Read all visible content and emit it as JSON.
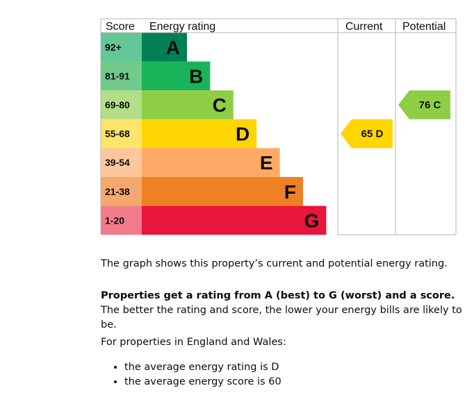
{
  "chart_data": {
    "type": "bar",
    "headers": {
      "score": "Score",
      "rating": "Energy rating",
      "current": "Current",
      "potential": "Potential"
    },
    "bands": [
      {
        "letter": "A",
        "range": "92+",
        "color": "#008054",
        "score_color": "#64c695"
      },
      {
        "letter": "B",
        "range": "81-91",
        "color": "#19b459",
        "score_color": "#6fca8c"
      },
      {
        "letter": "C",
        "range": "69-80",
        "color": "#8dce46",
        "score_color": "#b1de86"
      },
      {
        "letter": "D",
        "range": "55-68",
        "color": "#ffd500",
        "score_color": "#fde569"
      },
      {
        "letter": "E",
        "range": "39-54",
        "color": "#fcaa65",
        "score_color": "#fdc79b"
      },
      {
        "letter": "F",
        "range": "21-38",
        "color": "#ef8023",
        "score_color": "#f4a86c"
      },
      {
        "letter": "G",
        "range": "1-20",
        "color": "#e9153b",
        "score_color": "#f27b8b"
      }
    ],
    "current": {
      "score": 65,
      "band": "D",
      "label": "65  D",
      "color": "#ffd500"
    },
    "potential": {
      "score": 76,
      "band": "C",
      "label": "76  C",
      "color": "#8dce46"
    }
  },
  "text": {
    "summary": "The graph shows this property’s current and potential energy rating.",
    "explain_bold": "Properties get a rating from A (best) to G (worst) and a score.",
    "explain_rest": " The better the rating and score, the lower your energy bills are likely to be.",
    "regional": "For properties in England and Wales:",
    "averages": [
      "the average energy rating is D",
      "the average energy score is 60"
    ]
  },
  "colors": {
    "grid": "#b1b4b6",
    "text": "#0b0c0c"
  }
}
